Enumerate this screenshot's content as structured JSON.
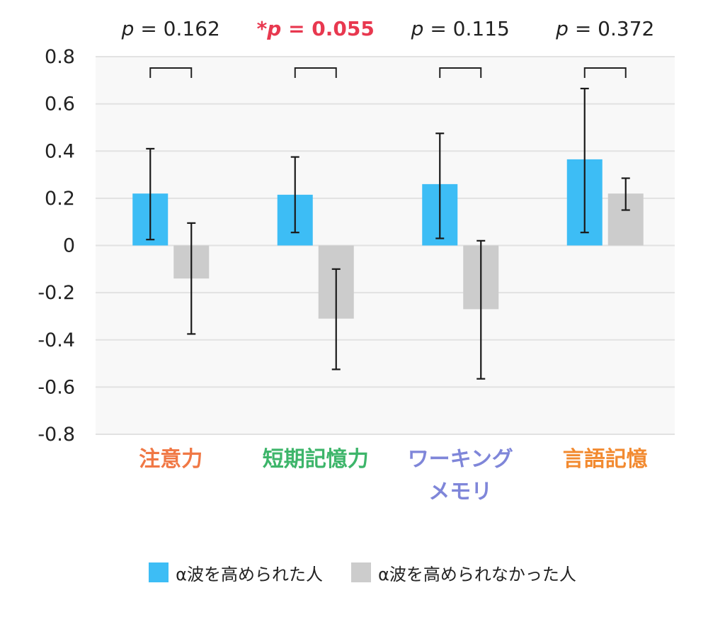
{
  "chart_data": {
    "type": "bar",
    "title": "",
    "xlabel": "",
    "ylabel": "",
    "ylim": [
      -0.8,
      0.8
    ],
    "yticks": [
      0.8,
      0.6,
      0.4,
      0.2,
      0,
      -0.2,
      -0.4,
      -0.6,
      -0.8
    ],
    "ytick_labels": [
      "0.8",
      "0.6",
      "0.4",
      "0.2",
      "0",
      "-0.2",
      "-0.4",
      "-0.6",
      "-0.8"
    ],
    "grid": true,
    "legend_position": "bottom",
    "categories": [
      {
        "lines": [
          "注意力"
        ],
        "color": "#F07845"
      },
      {
        "lines": [
          "短期記憶力"
        ],
        "color": "#3DB56A"
      },
      {
        "lines": [
          "ワーキング",
          "メモリ"
        ],
        "color": "#7F86D9"
      },
      {
        "lines": [
          "言語記憶"
        ],
        "color": "#F28A30"
      }
    ],
    "series": [
      {
        "name": "α波を高められた人",
        "color": "#3DBDF5",
        "values": [
          0.22,
          0.215,
          0.26,
          0.365
        ],
        "error_low": [
          0.025,
          0.055,
          0.03,
          0.055
        ],
        "error_high": [
          0.41,
          0.375,
          0.475,
          0.665
        ]
      },
      {
        "name": "α波を高められなかった人",
        "color": "#CCCCCC",
        "values": [
          -0.14,
          -0.31,
          -0.27,
          0.22
        ],
        "error_low": [
          -0.375,
          -0.525,
          -0.565,
          0.15
        ],
        "error_high": [
          0.095,
          -0.1,
          0.02,
          0.285
        ]
      }
    ],
    "p_values": [
      {
        "prefix": "",
        "label": "p",
        "rest": " = 0.162",
        "significant": false
      },
      {
        "prefix": "*",
        "label": "p",
        "rest": " = 0.055",
        "significant": true
      },
      {
        "prefix": "",
        "label": "p",
        "rest": " = 0.115",
        "significant": false
      },
      {
        "prefix": "",
        "label": "p",
        "rest": " = 0.372",
        "significant": false
      }
    ],
    "significant_color": "#E8384F"
  }
}
